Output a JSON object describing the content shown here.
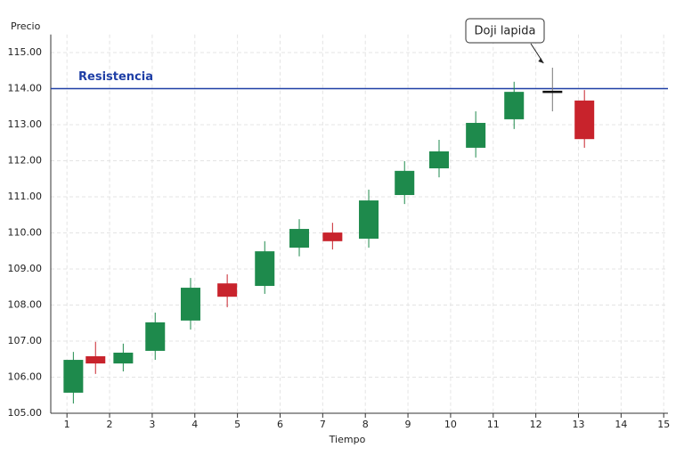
{
  "chart_data": {
    "type": "candlestick",
    "y_label": "Precio",
    "x_label": "Tiempo",
    "xlim": [
      0.62,
      15.1
    ],
    "ylim": [
      105,
      115.5
    ],
    "xticks": [
      1,
      2,
      3,
      4,
      5,
      6,
      7,
      8,
      9,
      10,
      11,
      12,
      13,
      14,
      15
    ],
    "yticks": [
      {
        "value": 105,
        "label": "105.00"
      },
      {
        "value": 106,
        "label": "106.00"
      },
      {
        "value": 107,
        "label": "107.00"
      },
      {
        "value": 108,
        "label": "108.00"
      },
      {
        "value": 109,
        "label": "109.00"
      },
      {
        "value": 110,
        "label": "110.00"
      },
      {
        "value": 111,
        "label": "111.00"
      },
      {
        "value": 112,
        "label": "112.00"
      },
      {
        "value": 113,
        "label": "113.00"
      },
      {
        "value": 114,
        "label": "114.00"
      },
      {
        "value": 115,
        "label": "115.00"
      }
    ],
    "grid": true,
    "up_color": "#1e8a4c",
    "down_color": "#c8232c",
    "doji_color": "#111111",
    "x": [
      1.15,
      1.67,
      2.32,
      3.07,
      3.9,
      4.76,
      5.64,
      6.45,
      7.23,
      8.08,
      8.92,
      9.73,
      10.59,
      11.49,
      12.39,
      13.14
    ],
    "open": [
      105.57,
      106.58,
      106.38,
      106.73,
      107.57,
      108.6,
      108.53,
      109.59,
      110.01,
      109.84,
      111.05,
      111.79,
      112.36,
      113.15,
      113.91,
      113.67
    ],
    "high": [
      106.7,
      106.98,
      106.93,
      107.79,
      108.75,
      108.85,
      109.77,
      110.38,
      110.28,
      111.2,
      111.99,
      112.58,
      113.37,
      114.19,
      114.58,
      113.96
    ],
    "low": [
      105.27,
      106.09,
      106.16,
      106.48,
      107.32,
      107.94,
      108.31,
      109.35,
      109.54,
      109.59,
      110.8,
      111.54,
      112.09,
      112.88,
      113.37,
      112.36
    ],
    "close": [
      106.48,
      106.38,
      106.68,
      107.52,
      108.48,
      108.23,
      109.49,
      110.11,
      109.77,
      110.9,
      111.72,
      112.26,
      113.05,
      113.91,
      113.91,
      112.6
    ],
    "resistance": {
      "label": "Resistencia",
      "value": 114,
      "color": "#1f3fa6"
    },
    "annotation": "Doji lapida"
  }
}
